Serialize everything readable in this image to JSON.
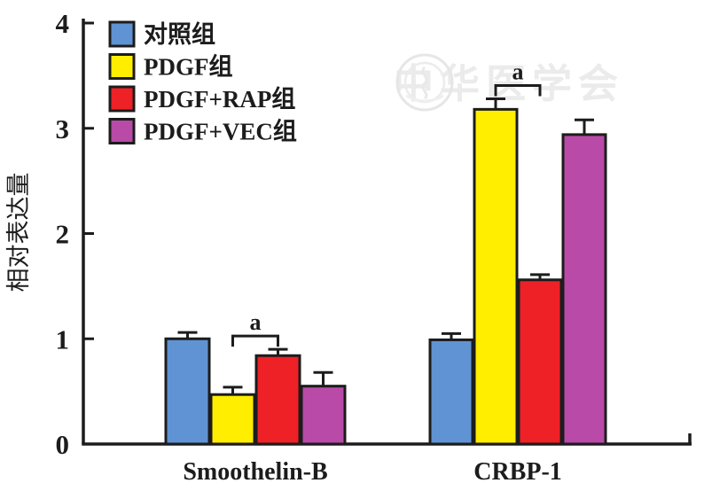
{
  "watermark": {
    "text": "中华医学会",
    "logo": "cma-emblem-icon"
  },
  "chart_data": {
    "type": "bar",
    "title": "",
    "categories": [
      "Smoothelin-B",
      "CRBP-1"
    ],
    "series": [
      {
        "name": "对照组",
        "color": "#5f93d3",
        "values": [
          1.0,
          0.99
        ],
        "errors": [
          0.06,
          0.06
        ]
      },
      {
        "name": "PDGF组",
        "color": "#ffee00",
        "values": [
          0.47,
          3.18
        ],
        "errors": [
          0.07,
          0.1
        ]
      },
      {
        "name": "PDGF+RAP组",
        "color": "#ee2127",
        "values": [
          0.84,
          1.56
        ],
        "errors": [
          0.06,
          0.05
        ]
      },
      {
        "name": "PDGF+VEC组",
        "color": "#b94aa7",
        "values": [
          0.55,
          2.94
        ],
        "errors": [
          0.13,
          0.14
        ]
      }
    ],
    "xlabel": "",
    "ylabel": "相对表达量",
    "ylim": [
      0,
      4
    ],
    "yticks": [
      0,
      1,
      2,
      3,
      4
    ],
    "grid": false,
    "legend_position": "upper-left-inside",
    "error_bars": "upper",
    "axis_color": "#1c1c1c",
    "annotations": [
      {
        "label": "a",
        "category_index": 0,
        "series_pair": [
          1,
          2
        ]
      },
      {
        "label": "a",
        "category_index": 1,
        "series_pair": [
          1,
          2
        ]
      }
    ]
  }
}
